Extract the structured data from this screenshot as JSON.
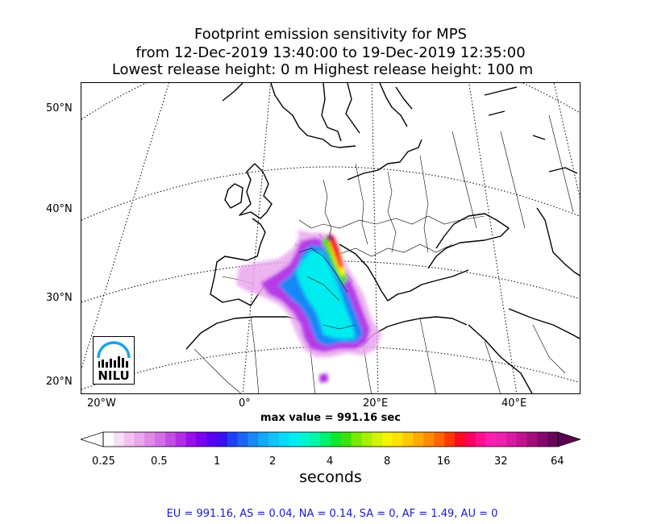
{
  "title": {
    "line1": "Footprint emission sensitivity for MPS",
    "line2": "from 12-Dec-2019 13:40:00 to 19-Dec-2019 12:35:00",
    "line3": "Lowest release height: 0 m      Highest release height: 100 m"
  },
  "map": {
    "lat_labels": [
      "50°N",
      "40°N",
      "30°N",
      "20°N"
    ],
    "lon_labels": [
      "20°W",
      "0°",
      "20°E",
      "40°E"
    ],
    "logo_text": "NILU",
    "max_value_text": "max value = 991.16 sec"
  },
  "colorbar": {
    "ticks": [
      "0.25",
      "0.5",
      "1",
      "2",
      "4",
      "8",
      "16",
      "32",
      "64"
    ],
    "label": "seconds",
    "colors": [
      "#ffffff",
      "#f7e0f7",
      "#f2c2f2",
      "#eaa6ee",
      "#e08ae8",
      "#d46ee6",
      "#c24ee6",
      "#b02ee8",
      "#9a10ea",
      "#7a00ee",
      "#5a00f0",
      "#3a10f2",
      "#2040f4",
      "#1c64f4",
      "#1888f6",
      "#14a8f8",
      "#10c4f8",
      "#06dcf6",
      "#00ecee",
      "#00f4d2",
      "#00f6a8",
      "#00f070",
      "#10e630",
      "#40e010",
      "#78e800",
      "#a8ee00",
      "#d2f400",
      "#f4f400",
      "#ffe200",
      "#ffc800",
      "#ffaa00",
      "#ff8a00",
      "#ff6600",
      "#ff3a00",
      "#ff0a22",
      "#ff0060",
      "#ff108c",
      "#ff20b0",
      "#f020b0",
      "#d81aa0",
      "#c0148e",
      "#a40e7c",
      "#86086a",
      "#6a045a"
    ]
  },
  "footer": "EU = 991.16,  AS = 0.04,  NA = 0.14,  SA = 0,  AF = 1.49,  AU = 0"
}
